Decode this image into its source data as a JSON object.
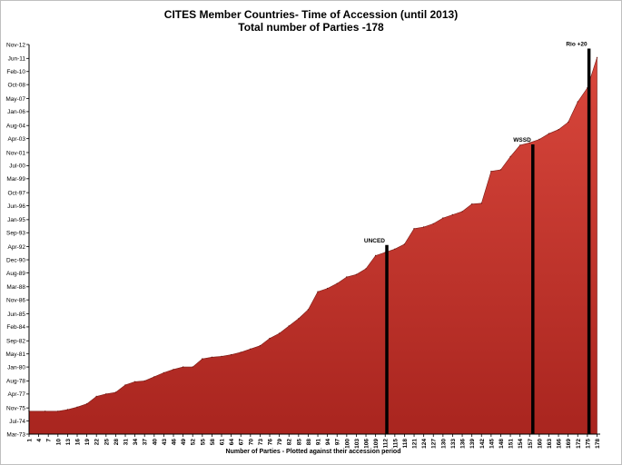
{
  "chart_data": {
    "type": "area",
    "title": "CITES Member Countries-  Time of Accession (until 2013)",
    "subtitle": "Total number of Parties -178",
    "xlabel": "Number of Parties - Plotted against  their accession period",
    "ylabel": "",
    "x_ticks": [
      1,
      4,
      7,
      10,
      13,
      16,
      19,
      22,
      25,
      28,
      31,
      34,
      37,
      40,
      43,
      46,
      49,
      52,
      55,
      58,
      61,
      64,
      67,
      70,
      73,
      76,
      79,
      82,
      85,
      88,
      91,
      94,
      97,
      100,
      103,
      106,
      109,
      112,
      115,
      118,
      121,
      124,
      127,
      130,
      133,
      136,
      139,
      142,
      145,
      148,
      151,
      154,
      157,
      160,
      163,
      166,
      169,
      172,
      175,
      178
    ],
    "y_ticks": [
      "Mar-73",
      "Jul-74",
      "Nov-75",
      "Apr-77",
      "Aug-78",
      "Jan-80",
      "May-81",
      "Sep-82",
      "Feb-84",
      "Jun-85",
      "Nov-86",
      "Mar-88",
      "Aug-89",
      "Dec-90",
      "Apr-92",
      "Sep-93",
      "Jan-95",
      "Jun-96",
      "Oct-97",
      "Mar-99",
      "Jul-00",
      "Nov-01",
      "Apr-03",
      "Aug-04",
      "Jan-06",
      "May-07",
      "Oct-08",
      "Feb-10",
      "Jun-11",
      "Nov-12"
    ],
    "xlim": [
      1,
      179
    ],
    "ylim": [
      "Mar-73",
      "Nov-12"
    ],
    "grid": false,
    "legend": "none",
    "fill_color": "#c73a2f",
    "marker_color": "#000000",
    "series": [
      {
        "x": [
          1,
          6,
          10,
          13,
          16,
          19,
          22,
          25,
          28,
          31,
          34,
          37,
          40,
          43,
          46,
          49,
          52,
          55,
          58,
          61,
          64,
          67,
          70,
          73,
          76,
          79,
          82,
          85,
          88,
          91,
          94,
          97,
          100,
          103,
          106,
          109,
          112,
          115,
          118,
          121,
          124,
          127,
          130,
          133,
          136,
          139,
          142,
          145,
          148,
          151,
          154,
          157,
          160,
          163,
          166,
          169,
          172,
          175,
          178
        ],
        "y": [
          "Jul-75",
          "Jul-75",
          "Jul-75",
          "Sep-75",
          "Dec-75",
          "Apr-76",
          "Jan-77",
          "Apr-77",
          "Jun-77",
          "Mar-78",
          "Jul-78",
          "Aug-78",
          "Jan-79",
          "Jun-79",
          "Oct-79",
          "Jan-80",
          "Jan-80",
          "Nov-80",
          "Jan-81",
          "Feb-81",
          "Apr-81",
          "Jul-81",
          "Nov-81",
          "Mar-82",
          "Dec-82",
          "Jun-83",
          "Mar-84",
          "Dec-84",
          "Nov-85",
          "Sep-87",
          "Jan-88",
          "Jul-88",
          "Mar-89",
          "Jun-89",
          "Jan-90",
          "May-91",
          "Sep-91",
          "Jan-92",
          "Jul-92",
          "Feb-94",
          "Apr-94",
          "Aug-94",
          "Mar-95",
          "Jul-95",
          "Nov-95",
          "Aug-96",
          "Sep-96",
          "Dec-99",
          "Feb-00",
          "Jun-01",
          "Aug-02",
          "Nov-02",
          "Mar-03",
          "Oct-03",
          "Mar-04",
          "Dec-04",
          "Jan-07",
          "Jun-08",
          "Jul-11"
        ]
      }
    ],
    "annotations": [
      {
        "label": "UNCED",
        "x": 112.5,
        "y": "Jun-92"
      },
      {
        "label": "WSSD",
        "x": 158,
        "y": "Sep-02"
      },
      {
        "label": "Rio +20",
        "x": 175.5,
        "y": "Jun-12"
      }
    ]
  }
}
